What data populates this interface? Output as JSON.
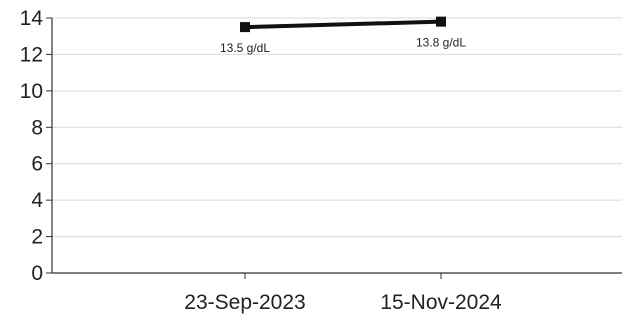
{
  "chart_data": {
    "type": "line",
    "title": "",
    "xlabel": "",
    "ylabel": "",
    "categories": [
      "23-Sep-2023",
      "15-Nov-2024"
    ],
    "series": [
      {
        "values": [
          13.5,
          13.8
        ],
        "data_labels": [
          "13.5 g/dL",
          "13.8 g/dL"
        ],
        "color": "#111111"
      }
    ],
    "ylim": [
      0,
      14
    ],
    "yticks": [
      "0",
      "2",
      "4",
      "6",
      "8",
      "10",
      "12",
      "14"
    ],
    "grid": true,
    "legend": "none"
  }
}
